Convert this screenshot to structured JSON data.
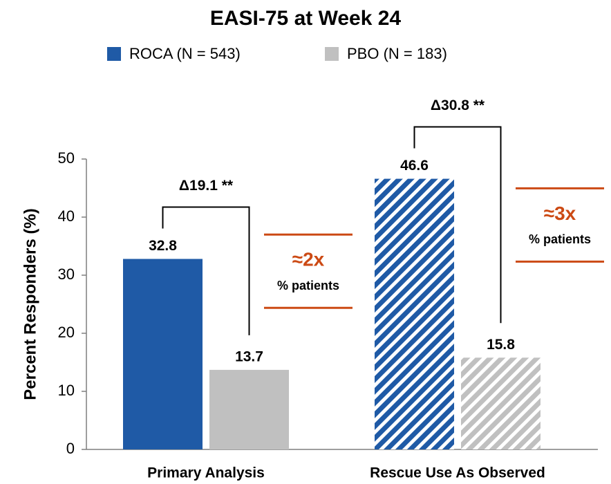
{
  "chart_data": {
    "type": "bar",
    "title": "EASI-75 at Week 24",
    "y_label": "Percent Responders (%)",
    "categories": [
      "Primary Analysis",
      "Rescue Use As Observed"
    ],
    "category_hatched": [
      false,
      true
    ],
    "series": [
      {
        "name": "ROCA (N = 543)",
        "color": "#1f5aa6",
        "values": [
          32.8,
          46.6
        ]
      },
      {
        "name": "PBO (N = 183)",
        "color": "#c0c0c0",
        "values": [
          13.7,
          15.8
        ]
      }
    ],
    "ylim": [
      0,
      50
    ],
    "yticks": [
      0,
      10,
      20,
      30,
      40,
      50
    ],
    "comparisons": [
      {
        "delta": "Δ19.1 **",
        "ratio": "≈2x",
        "note": "% patients"
      },
      {
        "delta": "Δ30.8 **",
        "ratio": "≈3x",
        "note": "% patients"
      }
    ],
    "annotation_color": "#cc4a14"
  }
}
